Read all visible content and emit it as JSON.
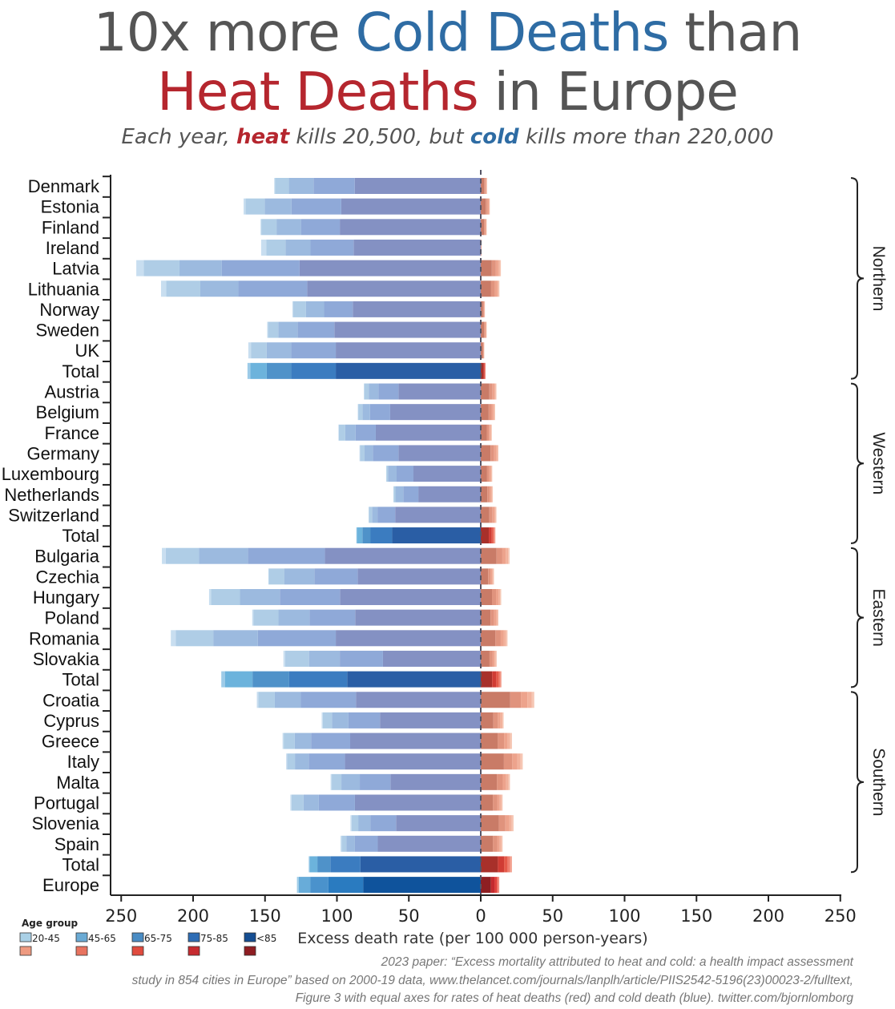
{
  "title": {
    "line1_a": "10x more ",
    "line1_b": "Cold Deaths",
    "line1_c": " than",
    "line2_a": "Heat Deaths",
    "line2_b": " in Europe",
    "subtitle_a": "Each year, ",
    "subtitle_b": "heat",
    "subtitle_c": " kills 20,500, but ",
    "subtitle_d": "cold",
    "subtitle_e": " kills more than 220,000"
  },
  "footer": [
    "2023 paper: “Excess mortality attributed to heat and cold: a health impact assessment",
    "study in 854 cities in Europe” based on 2000-19 data, www.thelancet.com/journals/lanplh/article/PIIS2542-5196(23)00023-2/fulltext,",
    "Figure 3 with equal axes for rates of heat deaths (red) and cold death (blue). twitter.com/bjornlomborg"
  ],
  "chart_data": {
    "type": "bar",
    "orientation": "horizontal-diverging-stacked",
    "xlabel": "Excess death rate (per 100 000 person-years)",
    "xlim": [
      -250,
      250
    ],
    "xticks": [
      -250,
      -200,
      -150,
      -100,
      -50,
      0,
      50,
      100,
      150,
      200,
      250
    ],
    "xtick_labels": [
      "250",
      "200",
      "150",
      "100",
      "50",
      "0",
      "50",
      "100",
      "150",
      "200",
      "250"
    ],
    "legend": {
      "title": "Age group",
      "groups": [
        "20-45",
        "45-65",
        "65-75",
        "75-85",
        "<85"
      ],
      "placement": "bottom-left"
    },
    "segment_order": [
      "<85",
      "75-85",
      "65-75",
      "45-65",
      "20-45"
    ],
    "colors": {
      "cold_country": [
        "#8491c3",
        "#8fa9d8",
        "#9cbadf",
        "#afcde6",
        "#c8def0"
      ],
      "cold_total": [
        "#2a5ea5",
        "#3b7cc0",
        "#4f92c9",
        "#6cb3dc",
        "#9dcbe8"
      ],
      "cold_europe": [
        "#0f539c",
        "#2a7bc0",
        "#4a92cc",
        "#68acd9",
        "#a0cde8"
      ],
      "heat_country": [
        "#c97b67",
        "#e0937d",
        "#eda38c",
        "#f2b29c",
        "#f6c7b4"
      ],
      "heat_total": [
        "#a8302a",
        "#d03c34",
        "#e55a4a",
        "#ef7f6e",
        "#f3a594"
      ],
      "heat_europe": [
        "#8e1f22",
        "#c42a2e",
        "#e0403c",
        "#ec6a5c",
        "#f29a8c"
      ],
      "legend_cold": [
        "#a9d0e6",
        "#6aaad4",
        "#4a8cc4",
        "#2e6db5",
        "#154e92"
      ],
      "legend_heat": [
        "#ee9a80",
        "#e8735f",
        "#e04b3e",
        "#c62b30",
        "#8e1d22"
      ]
    },
    "regions": [
      {
        "name": "Northern",
        "rows": [
          "Denmark",
          "Estonia",
          "Finland",
          "Ireland",
          "Latvia",
          "Lithuania",
          "Norway",
          "Sweden",
          "UK",
          "Total"
        ]
      },
      {
        "name": "Western",
        "rows": [
          "Austria",
          "Belgium",
          "France",
          "Germany",
          "Luxembourg",
          "Netherlands",
          "Switzerland",
          "Total"
        ]
      },
      {
        "name": "Eastern",
        "rows": [
          "Bulgaria",
          "Czechia",
          "Hungary",
          "Poland",
          "Romania",
          "Slovakia",
          "Total"
        ]
      },
      {
        "name": "Southern",
        "rows": [
          "Croatia",
          "Cyprus",
          "Greece",
          "Italy",
          "Malta",
          "Portugal",
          "Slovenia",
          "Spain",
          "Total"
        ]
      }
    ],
    "rows": [
      {
        "label": "Denmark",
        "kind": "country",
        "cold": [
          87.6,
          28.7,
          17.2,
          9.6,
          0.5
        ],
        "heat": [
          2.4,
          0.9,
          0.5,
          0.4,
          0.2
        ]
      },
      {
        "label": "Estonia",
        "kind": "country",
        "cold": [
          97,
          34.6,
          18.6,
          13.4,
          1.3
        ],
        "heat": [
          3.5,
          1.3,
          0.8,
          0.5,
          0.2
        ]
      },
      {
        "label": "Finland",
        "kind": "country",
        "cold": [
          98,
          27,
          17,
          10.6,
          0.5
        ],
        "heat": [
          2.3,
          0.8,
          0.5,
          0.4,
          0.2
        ]
      },
      {
        "label": "Ireland",
        "kind": "country",
        "cold": [
          88.4,
          30,
          17.4,
          13.4,
          3.5
        ],
        "heat": [
          0.3,
          0.1,
          0.1,
          0,
          0
        ]
      },
      {
        "label": "Latvia",
        "kind": "country",
        "cold": [
          126,
          54,
          29.5,
          24.9,
          5.1
        ],
        "heat": [
          7.7,
          2.8,
          1.7,
          1.1,
          0.7
        ]
      },
      {
        "label": "Lithuania",
        "kind": "country",
        "cold": [
          120.7,
          47.8,
          26.5,
          23.7,
          3.6
        ],
        "heat": [
          7.2,
          2.6,
          1.6,
          1,
          0.6
        ]
      },
      {
        "label": "Norway",
        "kind": "country",
        "cold": [
          89,
          19.9,
          12.6,
          9,
          0.5
        ],
        "heat": [
          1.6,
          0.6,
          0.3,
          0.2,
          0.2
        ]
      },
      {
        "label": "Sweden",
        "kind": "country",
        "cold": [
          101.8,
          25.6,
          13.4,
          7.2,
          0.5
        ],
        "heat": [
          2.3,
          0.8,
          0.5,
          0.4,
          0.2
        ]
      },
      {
        "label": "UK",
        "kind": "country",
        "cold": [
          100.8,
          31,
          17,
          11,
          1.8
        ],
        "heat": [
          1.4,
          0.5,
          0.3,
          0.2,
          0.1
        ]
      },
      {
        "label": "Total",
        "kind": "total",
        "cold": [
          100.8,
          31,
          17,
          11.5,
          1.9
        ],
        "heat": [
          1.9,
          0.7,
          0.4,
          0.3,
          0.1
        ]
      },
      {
        "label": "Austria",
        "kind": "country",
        "cold": [
          57.2,
          14,
          6.7,
          3.1,
          0.3
        ],
        "heat": [
          6,
          2.2,
          1.3,
          0.9,
          0.5
        ]
      },
      {
        "label": "Belgium",
        "kind": "country",
        "cold": [
          63,
          14,
          5.3,
          2.9,
          0.3
        ],
        "heat": [
          5.5,
          2,
          1.2,
          0.8,
          0.5
        ]
      },
      {
        "label": "France",
        "kind": "country",
        "cold": [
          73,
          14,
          7.2,
          4.5,
          0.3
        ],
        "heat": [
          4.2,
          1.5,
          0.9,
          0.6,
          0.5
        ]
      },
      {
        "label": "Germany",
        "kind": "country",
        "cold": [
          57.2,
          17.8,
          5.8,
          3.2,
          0.3
        ],
        "heat": [
          6.8,
          2.5,
          1.5,
          1,
          0.5
        ]
      },
      {
        "label": "Luxembourg",
        "kind": "country",
        "cold": [
          46.8,
          11.7,
          6,
          1,
          0.3
        ],
        "heat": [
          4.4,
          1.6,
          1,
          0.6,
          0.4
        ]
      },
      {
        "label": "Netherlands",
        "kind": "country",
        "cold": [
          43.4,
          10.5,
          5.4,
          1.2,
          0.3
        ],
        "heat": [
          4.6,
          1.7,
          1,
          0.7,
          0.4
        ]
      },
      {
        "label": "Switzerland",
        "kind": "country",
        "cold": [
          59.5,
          12.3,
          3.8,
          2.1,
          0.3
        ],
        "heat": [
          6,
          2.2,
          1.3,
          0.9,
          0.5
        ]
      },
      {
        "label": "Total",
        "kind": "total",
        "cold": [
          61.6,
          15,
          5.7,
          3.9,
          0.3
        ],
        "heat": [
          5.6,
          2,
          1.2,
          0.8,
          0.6
        ]
      },
      {
        "label": "Bulgaria",
        "kind": "country",
        "cold": [
          108.4,
          53.6,
          34,
          23,
          2.7
        ],
        "heat": [
          11,
          4,
          2.4,
          1.6,
          1
        ]
      },
      {
        "label": "Czechia",
        "kind": "country",
        "cold": [
          85.6,
          30.1,
          21,
          10.7,
          0.3
        ],
        "heat": [
          5.1,
          1.8,
          1.1,
          0.7,
          0.5
        ]
      },
      {
        "label": "Hungary",
        "kind": "country",
        "cold": [
          97.9,
          41.8,
          27.7,
          20.1,
          1.4
        ],
        "heat": [
          7.8,
          2.8,
          1.7,
          1.1,
          0.8
        ]
      },
      {
        "label": "Poland",
        "kind": "country",
        "cold": [
          87.3,
          31.7,
          21.7,
          17.4,
          0.8
        ],
        "heat": [
          6.8,
          2.5,
          1.5,
          1,
          0.5
        ]
      },
      {
        "label": "Romania",
        "kind": "country",
        "cold": [
          100.8,
          54.2,
          31,
          26,
          3.5
        ],
        "heat": [
          10.2,
          3.7,
          2.2,
          1.5,
          1
        ]
      },
      {
        "label": "Slovakia",
        "kind": "country",
        "cold": [
          68,
          30,
          21.4,
          16.6,
          1.2
        ],
        "heat": [
          6.1,
          2.2,
          1.3,
          0.9,
          0.6
        ]
      },
      {
        "label": "Total",
        "kind": "total",
        "cold": [
          92.9,
          40.3,
          25.5,
          19.2,
          2.5
        ],
        "heat": [
          7.9,
          2.9,
          1.7,
          1.2,
          0.7
        ]
      },
      {
        "label": "Croatia",
        "kind": "country",
        "cold": [
          86.8,
          38.3,
          18.1,
          11.5,
          1
        ],
        "heat": [
          20.5,
          7.4,
          4.5,
          3,
          1.8
        ]
      },
      {
        "label": "Cyprus",
        "kind": "country",
        "cold": [
          70.1,
          22,
          11.4,
          6.3,
          0.8
        ],
        "heat": [
          8.7,
          3.2,
          1.9,
          1.3,
          0.8
        ]
      },
      {
        "label": "Greece",
        "kind": "country",
        "cold": [
          90.8,
          27.2,
          11.4,
          7.6,
          0.8
        ],
        "heat": [
          11.9,
          4.3,
          2.6,
          1.7,
          1.2
        ]
      },
      {
        "label": "Italy",
        "kind": "country",
        "cold": [
          94.4,
          25.2,
          9.6,
          5.5,
          0.6
        ],
        "heat": [
          16.1,
          5.8,
          3.5,
          2.3,
          1.5
        ]
      },
      {
        "label": "Malta",
        "kind": "country",
        "cold": [
          62.8,
          21.3,
          12.8,
          6.7,
          0.8
        ],
        "heat": [
          11.2,
          4.1,
          2.4,
          1.6,
          1
        ]
      },
      {
        "label": "Portugal",
        "kind": "country",
        "cold": [
          87.5,
          25.2,
          10.5,
          8.4,
          0.8
        ],
        "heat": [
          8.4,
          3,
          1.8,
          1.2,
          0.8
        ]
      },
      {
        "label": "Slovenia",
        "kind": "country",
        "cold": [
          58.9,
          17.9,
          8.4,
          4.6,
          0.8
        ],
        "heat": [
          12.5,
          4.6,
          2.7,
          1.8,
          1.2
        ]
      },
      {
        "label": "Spain",
        "kind": "country",
        "cold": [
          71.6,
          15.9,
          6,
          3.2,
          0.8
        ],
        "heat": [
          8.4,
          3,
          1.8,
          1.2,
          0.8
        ]
      },
      {
        "label": "Total",
        "kind": "total",
        "cold": [
          83.7,
          20.9,
          9,
          5.4,
          0.6
        ],
        "heat": [
          11.9,
          4.3,
          2.6,
          1.7,
          1.2
        ]
      },
      {
        "label": "Europe",
        "kind": "europe",
        "cold": [
          81.8,
          24.1,
          12.5,
          8.1,
          1.3
        ],
        "heat": [
          7.1,
          2.6,
          1.5,
          1,
          0.7
        ]
      }
    ]
  }
}
